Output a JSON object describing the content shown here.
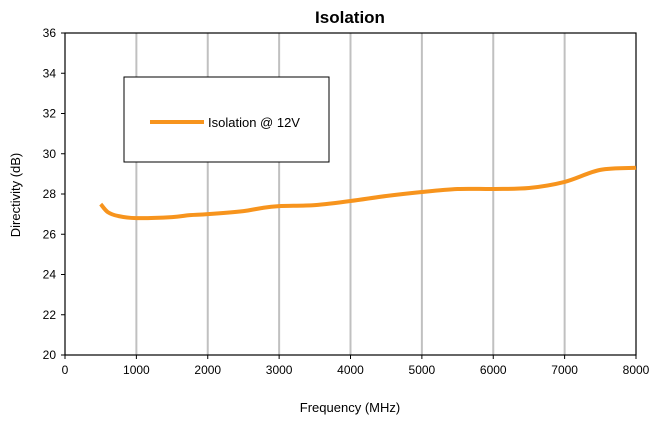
{
  "chart_data": {
    "type": "line",
    "title": "Isolation",
    "xlabel": "Frequency (MHz)",
    "ylabel": "Directivity (dB)",
    "xlim": [
      0,
      8000
    ],
    "ylim": [
      20,
      36
    ],
    "xticks": [
      0,
      1000,
      2000,
      3000,
      4000,
      5000,
      6000,
      7000,
      8000
    ],
    "yticks": [
      20,
      22,
      24,
      26,
      28,
      30,
      32,
      34,
      36
    ],
    "grid": "vertical",
    "legend_position": "top-left",
    "series": [
      {
        "name": "Isolation @ 12V",
        "color": "#f7941d",
        "points": [
          [
            500,
            27.5
          ],
          [
            600,
            27.1
          ],
          [
            750,
            26.9
          ],
          [
            1000,
            26.8
          ],
          [
            1500,
            26.85
          ],
          [
            1750,
            26.95
          ],
          [
            2000,
            27.0
          ],
          [
            2500,
            27.15
          ],
          [
            2750,
            27.3
          ],
          [
            3000,
            27.4
          ],
          [
            3500,
            27.45
          ],
          [
            4000,
            27.65
          ],
          [
            4500,
            27.9
          ],
          [
            5000,
            28.1
          ],
          [
            5500,
            28.25
          ],
          [
            6000,
            28.25
          ],
          [
            6500,
            28.3
          ],
          [
            7000,
            28.6
          ],
          [
            7500,
            29.2
          ],
          [
            8000,
            29.3
          ]
        ]
      }
    ]
  }
}
